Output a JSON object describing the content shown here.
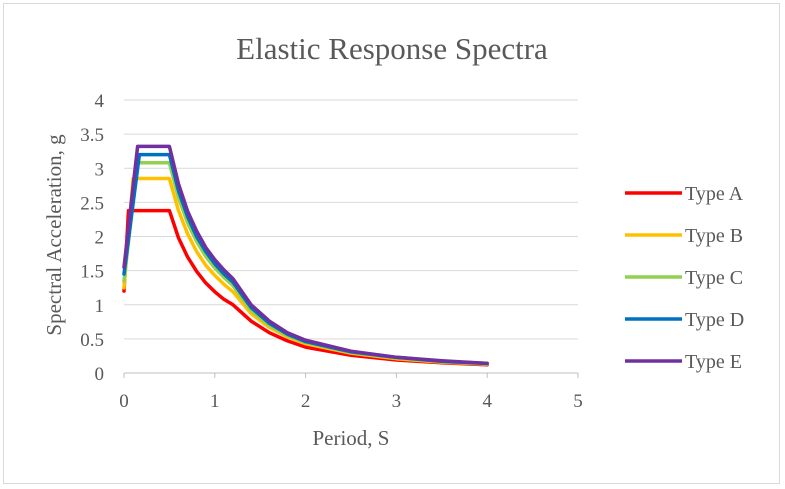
{
  "chart_data": {
    "type": "line",
    "title": "Elastic Response Spectra",
    "xlabel": "Period, S",
    "ylabel": "Spectral Acceleration, g",
    "xlim": [
      0,
      5
    ],
    "ylim": [
      0,
      4
    ],
    "x_ticks": [
      "0",
      "1",
      "2",
      "3",
      "4",
      "5"
    ],
    "y_ticks": [
      "0",
      "0.5",
      "1",
      "1.5",
      "2",
      "2.5",
      "3",
      "3.5",
      "4"
    ],
    "grid": "horizontal",
    "legend_position": "right",
    "series": [
      {
        "name": "Type A",
        "color": "#ff0000",
        "points": [
          [
            0.0,
            1.2
          ],
          [
            0.05,
            2.38
          ],
          [
            0.5,
            2.38
          ],
          [
            0.6,
            1.98
          ],
          [
            0.7,
            1.7
          ],
          [
            0.8,
            1.49
          ],
          [
            0.9,
            1.32
          ],
          [
            1.0,
            1.19
          ],
          [
            1.1,
            1.08
          ],
          [
            1.2,
            1.0
          ],
          [
            1.4,
            0.76
          ],
          [
            1.6,
            0.59
          ],
          [
            1.8,
            0.47
          ],
          [
            2.0,
            0.38
          ],
          [
            2.5,
            0.26
          ],
          [
            3.0,
            0.19
          ],
          [
            3.5,
            0.15
          ],
          [
            4.0,
            0.12
          ]
        ]
      },
      {
        "name": "Type B",
        "color": "#ffc000",
        "points": [
          [
            0.0,
            1.25
          ],
          [
            0.1,
            2.85
          ],
          [
            0.5,
            2.85
          ],
          [
            0.6,
            2.38
          ],
          [
            0.7,
            2.04
          ],
          [
            0.8,
            1.78
          ],
          [
            0.9,
            1.58
          ],
          [
            1.0,
            1.43
          ],
          [
            1.1,
            1.3
          ],
          [
            1.2,
            1.19
          ],
          [
            1.4,
            0.87
          ],
          [
            1.6,
            0.67
          ],
          [
            1.8,
            0.53
          ],
          [
            2.0,
            0.43
          ],
          [
            2.5,
            0.29
          ],
          [
            3.0,
            0.21
          ],
          [
            3.5,
            0.16
          ],
          [
            4.0,
            0.13
          ]
        ]
      },
      {
        "name": "Type C",
        "color": "#92d050",
        "points": [
          [
            0.0,
            1.35
          ],
          [
            0.15,
            3.08
          ],
          [
            0.5,
            3.08
          ],
          [
            0.6,
            2.57
          ],
          [
            0.7,
            2.2
          ],
          [
            0.8,
            1.93
          ],
          [
            0.9,
            1.71
          ],
          [
            1.0,
            1.54
          ],
          [
            1.1,
            1.4
          ],
          [
            1.2,
            1.28
          ],
          [
            1.4,
            0.92
          ],
          [
            1.6,
            0.7
          ],
          [
            1.8,
            0.55
          ],
          [
            2.0,
            0.45
          ],
          [
            2.5,
            0.3
          ],
          [
            3.0,
            0.22
          ],
          [
            3.5,
            0.17
          ],
          [
            4.0,
            0.13
          ]
        ]
      },
      {
        "name": "Type D",
        "color": "#0070c0",
        "points": [
          [
            0.0,
            1.45
          ],
          [
            0.17,
            3.2
          ],
          [
            0.5,
            3.2
          ],
          [
            0.6,
            2.67
          ],
          [
            0.7,
            2.29
          ],
          [
            0.8,
            2.0
          ],
          [
            0.9,
            1.78
          ],
          [
            1.0,
            1.6
          ],
          [
            1.1,
            1.45
          ],
          [
            1.2,
            1.33
          ],
          [
            1.4,
            0.96
          ],
          [
            1.6,
            0.73
          ],
          [
            1.8,
            0.57
          ],
          [
            2.0,
            0.46
          ],
          [
            2.5,
            0.31
          ],
          [
            3.0,
            0.23
          ],
          [
            3.5,
            0.17
          ],
          [
            4.0,
            0.14
          ]
        ]
      },
      {
        "name": "Type E",
        "color": "#7030a0",
        "points": [
          [
            0.0,
            1.55
          ],
          [
            0.15,
            3.32
          ],
          [
            0.5,
            3.32
          ],
          [
            0.6,
            2.77
          ],
          [
            0.7,
            2.37
          ],
          [
            0.8,
            2.08
          ],
          [
            0.9,
            1.84
          ],
          [
            1.0,
            1.66
          ],
          [
            1.1,
            1.51
          ],
          [
            1.2,
            1.38
          ],
          [
            1.4,
            1.0
          ],
          [
            1.6,
            0.76
          ],
          [
            1.8,
            0.59
          ],
          [
            2.0,
            0.48
          ],
          [
            2.5,
            0.32
          ],
          [
            3.0,
            0.23
          ],
          [
            3.5,
            0.18
          ],
          [
            4.0,
            0.14
          ]
        ]
      }
    ]
  }
}
